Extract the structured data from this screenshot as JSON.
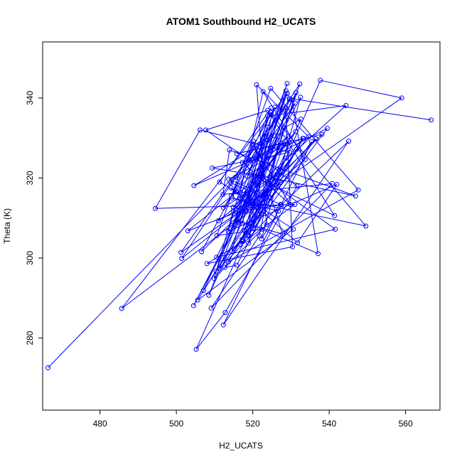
{
  "chart_data": {
    "type": "line",
    "title": "ATOM1 Southbound H2_UCATS",
    "xlabel": "H2_UCATS",
    "ylabel": "Theta (K)",
    "xlim": [
      465,
      569
    ],
    "ylim": [
      262,
      354
    ],
    "xticks": [
      480,
      500,
      520,
      540,
      560
    ],
    "yticks": [
      280,
      300,
      320,
      340
    ],
    "grid": false,
    "legend": "none",
    "colors": {
      "series": "#0000ff",
      "axes": "#000000",
      "background": "#ffffff"
    },
    "series": [
      {
        "markers": "open-circle",
        "x": [
          566.7,
          529.6,
          523.9,
          504.6,
          533.1,
          518.3,
          527.5,
          545.1,
          512.3,
          535.4,
          517.2,
          528.7,
          522.2,
          541.6,
          510.5,
          532.5,
          522.3,
          526.7,
          514.6,
          549.6,
          524.9,
          520.1,
          531.3,
          507.1,
          531.5,
          515.8,
          512.7,
          533.3,
          517.8,
          529.6,
          501.2,
          559.0,
          537.7,
          518.9,
          523.3,
          514.5,
          536.5,
          520.1,
          527.2,
          518.6,
          516.8,
          531.0,
          494.5,
          506.2,
          529.7,
          509.4,
          524.6,
          546.9,
          513.9,
          512.2,
          540.8,
          509.1,
          521.7,
          528.6,
          530.4,
          508.0,
          517.5,
          523.1,
          519.6,
          531.7,
          542.0,
          513.6,
          520.1,
          527.8,
          515.7,
          530.3,
          537.1,
          522.4,
          510.6,
          524.7,
          547.6,
          513.6,
          528.8,
          505.6,
          530.6,
          514.3,
          522.2,
          528.1,
          532.6,
          519.7,
          511.3,
          527.3,
          514.3,
          521.5,
          531.6,
          512.8,
          505.2,
          523.3,
          515.6,
          526.6,
          522.7,
          508.5,
          529.0,
          518.6,
          524.7,
          516.6,
          531.2,
          514.9,
          509.9,
          523.6,
          521.0,
          534.6,
          516.3,
          521.3,
          504.5,
          527.5,
          514.6,
          531.1,
          512.3,
          526.3,
          511.0,
          519.1,
          529.0,
          485.7,
          524.3,
          513.7,
          539.5,
          518.9,
          532.3,
          519.2,
          507.7,
          523.9,
          541.4,
          519.6,
          522.4,
          514.9,
          544.4,
          523.9,
          517.3,
          519.0,
          529.0,
          510.4,
          524.0,
          506.6,
          538.1,
          515.8,
          529.6,
          516.7,
          522.7,
          533.7,
          501.4,
          515.5,
          525.8,
          520.9,
          529.3,
          514.4,
          524.8,
          511.3,
          515.8,
          503.0,
          522.5,
          528.2,
          517.3,
          529.8,
          520.1,
          525.5,
          466.4
        ],
        "y": [
          334.5,
          339.9,
          329.4,
          318.1,
          329.9,
          311.9,
          313.3,
          329.2,
          283.3,
          329.1,
          304.7,
          341.8,
          320.5,
          307.2,
          300.2,
          340.2,
          304.8,
          311.7,
          315.0,
          308.0,
          335.8,
          307.5,
          341.3,
          291.9,
          327.2,
          298.2,
          297.7,
          329.9,
          306.9,
          339.6,
          301.4,
          340.0,
          344.4,
          303.7,
          331.3,
          301.7,
          329.8,
          313.1,
          318.9,
          305.6,
          303.4,
          313.4,
          312.4,
          332.0,
          326.4,
          322.5,
          320.1,
          315.5,
          327.0,
          315.9,
          318.6,
          287.5,
          305.5,
          337.5,
          302.8,
          298.6,
          304.2,
          322.4,
          314.1,
          303.8,
          318.4,
          306.7,
          329.2,
          306.0,
          309.2,
          339.5,
          301.1,
          307.2,
          305.6,
          342.4,
          317.0,
          299.0,
          325.0,
          289.5,
          307.2,
          317.5,
          311.1,
          332.5,
          334.7,
          308.0,
          297.4,
          313.4,
          318.8,
          325.6,
          318.0,
          286.4,
          277.2,
          316.3,
          312.2,
          330.4,
          320.6,
          290.7,
          341.1,
          320.4,
          336.4,
          314.9,
          331.6,
          311.8,
          294.9,
          308.3,
          343.3,
          330.3,
          308.9,
          319.0,
          288.1,
          328.5,
          308.1,
          338.7,
          312.6,
          320.9,
          309.3,
          313.8,
          341.2,
          287.4,
          315.3,
          319.7,
          332.4,
          305.8,
          343.5,
          324.4,
          332.0,
          336.9,
          310.6,
          320.8,
          320.7,
          312.7,
          338.1,
          335.5,
          308.7,
          315.3,
          343.6,
          296.7,
          332.7,
          301.6,
          330.9,
          326.1,
          328.9,
          316.4,
          341.6,
          324.6,
          299.9,
          320.2,
          337.7,
          324.6,
          330.4,
          315.5,
          337.5,
          319.0,
          316.5,
          306.8,
          313.8,
          328.6,
          323.9,
          313.4,
          328.2,
          330.6,
          272.6
        ]
      }
    ]
  }
}
